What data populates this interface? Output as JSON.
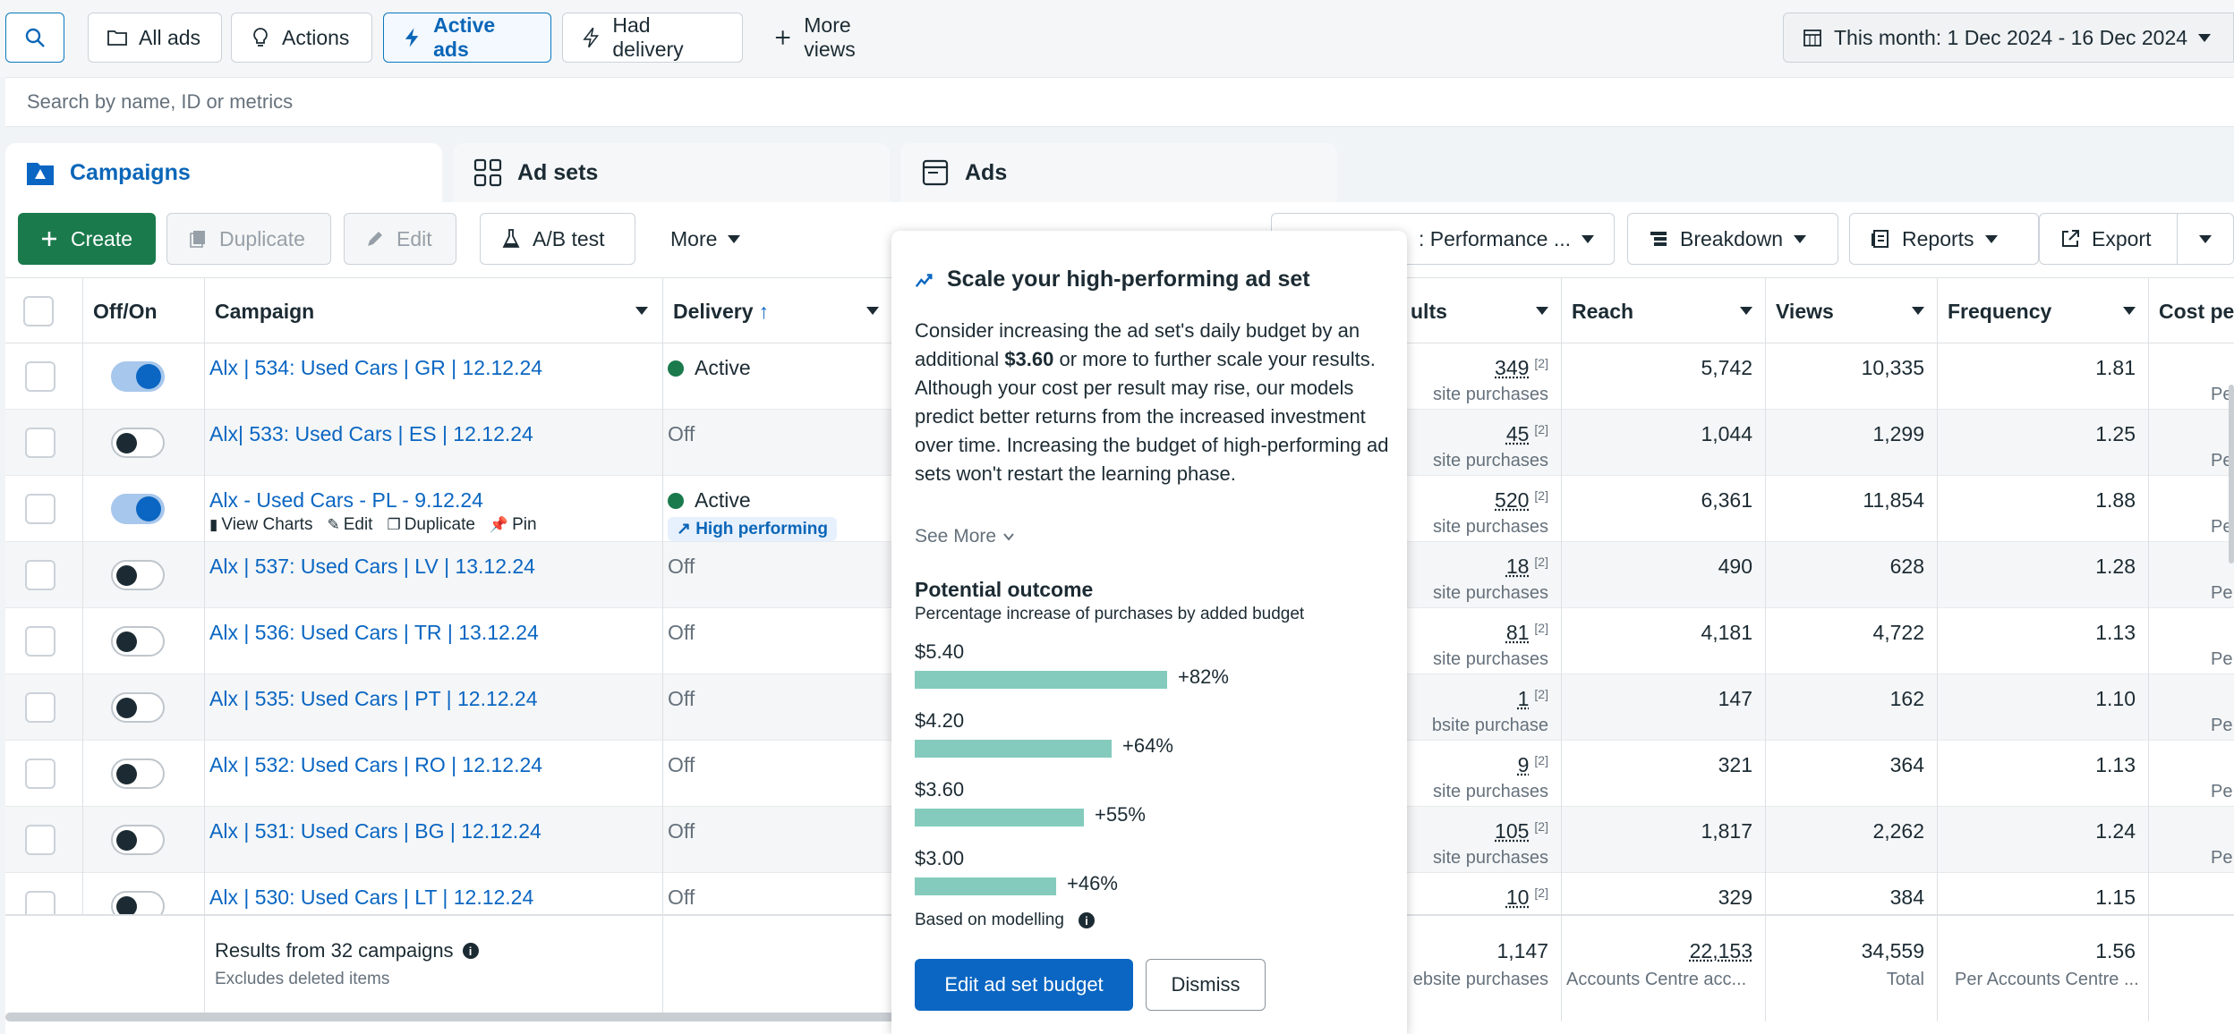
{
  "topbar": {
    "views": [
      {
        "label": "All ads",
        "icon": "folder-icon"
      },
      {
        "label": "Actions",
        "icon": "lightbulb-icon"
      },
      {
        "label": "Active ads",
        "icon": "bolt-icon",
        "active": true
      },
      {
        "label": "Had delivery",
        "icon": "bolt-outline-icon"
      }
    ],
    "more_views": "More views",
    "date_range": "This month: 1 Dec 2024 - 16 Dec 2024"
  },
  "search": {
    "placeholder": "Search by name, ID or metrics"
  },
  "tabs": [
    {
      "label": "Campaigns",
      "selected": true
    },
    {
      "label": "Ad sets"
    },
    {
      "label": "Ads"
    }
  ],
  "toolbar": {
    "create": "Create",
    "duplicate": "Duplicate",
    "edit": "Edit",
    "ab_test": "A/B test",
    "more": "More",
    "columns": ": Performance ...",
    "breakdown": "Breakdown",
    "reports": "Reports",
    "export": "Export"
  },
  "columns": {
    "off_on": "Off/On",
    "campaign": "Campaign",
    "delivery": "Delivery",
    "results": "ults",
    "reach": "Reach",
    "views": "Views",
    "frequency": "Frequency",
    "cost": "Cost per"
  },
  "rows": [
    {
      "on": true,
      "name": "Alx | 534: Used Cars | GR | 12.12.24",
      "delivery": "Active",
      "active": true,
      "results": "349",
      "results_sub": "site purchases",
      "reach": "5,742",
      "views": "10,335",
      "frequency": "1.81",
      "cost_sub": "Pe"
    },
    {
      "on": false,
      "name": "Alx| 533: Used Cars | ES | 12.12.24",
      "delivery": "Off",
      "active": false,
      "results": "45",
      "results_sub": "site purchases",
      "reach": "1,044",
      "views": "1,299",
      "frequency": "1.25",
      "cost_sub": "Pe"
    },
    {
      "on": true,
      "name": "Alx - Used Cars - PL - 9.12.24",
      "delivery": "Active",
      "active": true,
      "badge": "High performing",
      "hover": true,
      "results": "520",
      "results_sub": "site purchases",
      "reach": "6,361",
      "views": "11,854",
      "frequency": "1.88",
      "cost_sub": "Pe"
    },
    {
      "on": false,
      "name": "Alx | 537: Used Cars | LV | 13.12.24",
      "delivery": "Off",
      "active": false,
      "results": "18",
      "results_sub": "site purchases",
      "reach": "490",
      "views": "628",
      "frequency": "1.28",
      "cost_sub": "Pe"
    },
    {
      "on": false,
      "name": "Alx | 536: Used Cars | TR | 13.12.24",
      "delivery": "Off",
      "active": false,
      "results": "81",
      "results_sub": "site purchases",
      "reach": "4,181",
      "views": "4,722",
      "frequency": "1.13",
      "cost_sub": "Pe"
    },
    {
      "on": false,
      "name": "Alx | 535: Used Cars | PT | 12.12.24",
      "delivery": "Off",
      "active": false,
      "results": "1",
      "results_sub": "bsite purchase",
      "reach": "147",
      "views": "162",
      "frequency": "1.10",
      "cost_sub": "Pe"
    },
    {
      "on": false,
      "name": "Alx | 532: Used Cars | RO | 12.12.24",
      "delivery": "Off",
      "active": false,
      "results": "9",
      "results_sub": "site purchases",
      "reach": "321",
      "views": "364",
      "frequency": "1.13",
      "cost_sub": "Pe"
    },
    {
      "on": false,
      "name": "Alx | 531: Used Cars | BG | 12.12.24",
      "delivery": "Off",
      "active": false,
      "results": "105",
      "results_sub": "site purchases",
      "reach": "1,817",
      "views": "2,262",
      "frequency": "1.24",
      "cost_sub": "Pe"
    },
    {
      "on": false,
      "name": "Alx | 530: Used Cars | LT | 12.12.24",
      "delivery": "Off",
      "active": false,
      "results": "10",
      "results_sub": "",
      "reach": "329",
      "views": "384",
      "frequency": "1.15",
      "cost_sub": ""
    }
  ],
  "row_hover_actions": {
    "view_charts": "View Charts",
    "edit": "Edit",
    "duplicate": "Duplicate",
    "pin": "Pin"
  },
  "sup_marker": "[2]",
  "footer": {
    "title": "Results from 32 campaigns",
    "subtitle": "Excludes deleted items",
    "results": "1,147",
    "results_sub": "ebsite purchases",
    "reach": "22,153",
    "reach_sub": "Accounts Centre acc...",
    "views": "34,559",
    "views_sub": "Total",
    "frequency": "1.56",
    "frequency_sub": "Per Accounts Centre ..."
  },
  "popover": {
    "title": "Scale your high-performing ad set",
    "body_pre": "Consider increasing the ad set's daily budget by an additional ",
    "body_amount": "$3.60",
    "body_post": " or more to further scale your results. Although your cost per result may rise, our models predict better returns from the increased investment over time. Increasing the budget of high-performing ad sets won't restart the learning phase.",
    "see_more": "See More",
    "outcome_title": "Potential outcome",
    "outcome_subtitle": "Percentage increase of purchases by added budget",
    "bars": [
      {
        "budget": "$5.40",
        "increase": "+82%",
        "value": 82
      },
      {
        "budget": "$4.20",
        "increase": "+64%",
        "value": 64
      },
      {
        "budget": "$3.60",
        "increase": "+55%",
        "value": 55
      },
      {
        "budget": "$3.00",
        "increase": "+46%",
        "value": 46
      }
    ],
    "note": "Based on modelling",
    "primary_button": "Edit ad set budget",
    "secondary_button": "Dismiss"
  },
  "colors": {
    "accent": "#0a66c2",
    "create": "#1a7a4c",
    "bar": "#84cbbd"
  }
}
